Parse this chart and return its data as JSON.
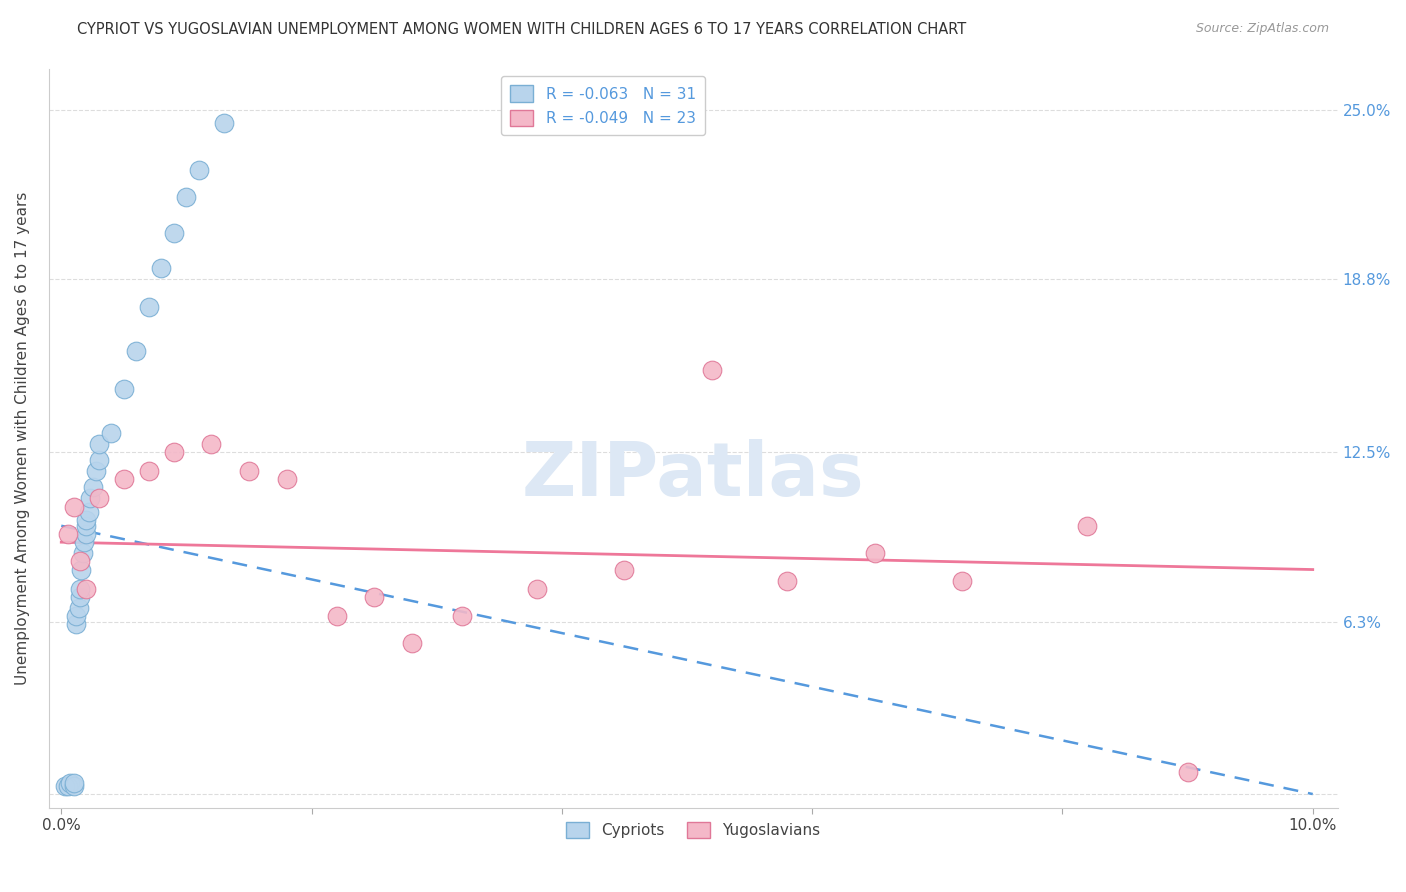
{
  "title": "CYPRIOT VS YUGOSLAVIAN UNEMPLOYMENT AMONG WOMEN WITH CHILDREN AGES 6 TO 17 YEARS CORRELATION CHART",
  "source": "Source: ZipAtlas.com",
  "ylabel": "Unemployment Among Women with Children Ages 6 to 17 years",
  "cypriot_color": "#b8d4ec",
  "cypriot_edge": "#7aafd4",
  "yugoslavian_color": "#f4b8c8",
  "yugoslavian_edge": "#e07898",
  "cypriot_line_color": "#5599dd",
  "yugoslavian_line_color": "#ee7799",
  "background_color": "#ffffff",
  "grid_color": "#dddddd",
  "cypriot_x": [
    0.0003,
    0.0005,
    0.0007,
    0.001,
    0.001,
    0.0012,
    0.0012,
    0.0014,
    0.0015,
    0.0015,
    0.0016,
    0.0017,
    0.0018,
    0.002,
    0.002,
    0.002,
    0.0022,
    0.0023,
    0.0025,
    0.0028,
    0.003,
    0.003,
    0.004,
    0.005,
    0.006,
    0.007,
    0.008,
    0.009,
    0.01,
    0.011,
    0.013
  ],
  "cypriot_y": [
    0.003,
    0.003,
    0.004,
    0.003,
    0.004,
    0.062,
    0.065,
    0.068,
    0.072,
    0.075,
    0.082,
    0.088,
    0.092,
    0.095,
    0.098,
    0.1,
    0.103,
    0.108,
    0.112,
    0.118,
    0.122,
    0.128,
    0.132,
    0.148,
    0.162,
    0.178,
    0.192,
    0.205,
    0.218,
    0.228,
    0.245
  ],
  "yugoslavian_x": [
    0.0005,
    0.001,
    0.0015,
    0.002,
    0.003,
    0.005,
    0.007,
    0.009,
    0.012,
    0.015,
    0.018,
    0.022,
    0.025,
    0.028,
    0.032,
    0.038,
    0.045,
    0.052,
    0.058,
    0.065,
    0.072,
    0.082,
    0.09
  ],
  "yugoslavian_y": [
    0.095,
    0.105,
    0.085,
    0.075,
    0.108,
    0.115,
    0.118,
    0.125,
    0.128,
    0.118,
    0.115,
    0.065,
    0.072,
    0.055,
    0.065,
    0.075,
    0.082,
    0.155,
    0.078,
    0.088,
    0.078,
    0.098,
    0.008
  ],
  "ytick_values": [
    0.0,
    0.063,
    0.125,
    0.188,
    0.25
  ],
  "ytick_labels": [
    "",
    "6.3%",
    "12.5%",
    "18.8%",
    "25.0%"
  ],
  "xtick_values": [
    0.0,
    0.02,
    0.04,
    0.06,
    0.08,
    0.1
  ],
  "xtick_labels": [
    "0.0%",
    "",
    "",
    "",
    "",
    "10.0%"
  ]
}
